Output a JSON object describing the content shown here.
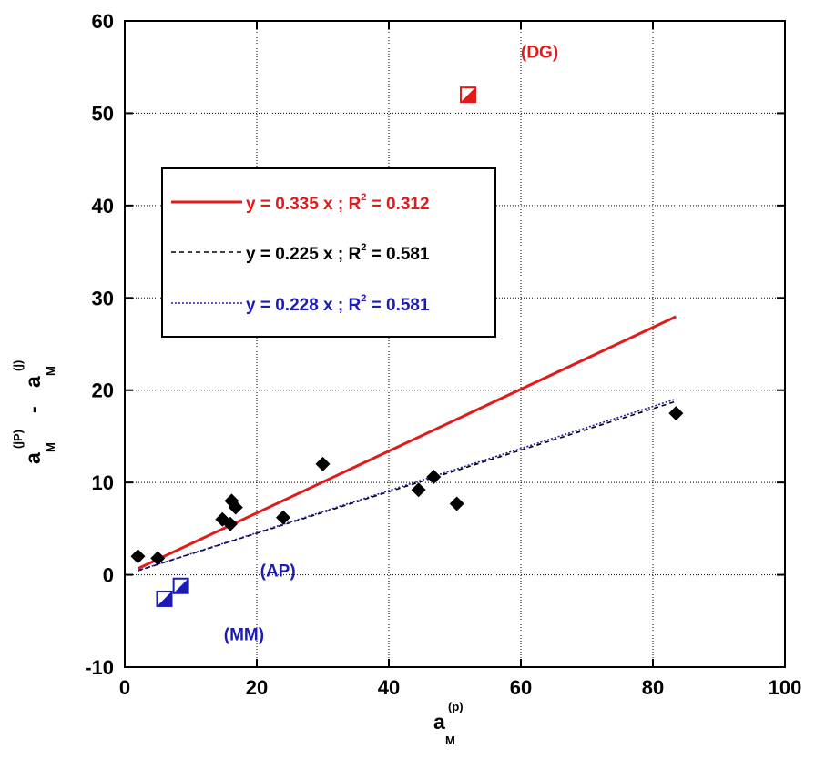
{
  "chart_data": {
    "type": "scatter",
    "xlabel": {
      "base": "a",
      "sub": "M",
      "sup": "(p)"
    },
    "ylabel": {
      "base1": "a",
      "sub1": "M",
      "sup1": "(jP)",
      "mid": " - ",
      "base2": "a",
      "sub2": "M",
      "sup2": "(j)"
    },
    "xlim": [
      0,
      100
    ],
    "ylim": [
      -10,
      60
    ],
    "xticks": [
      0,
      20,
      40,
      60,
      80,
      100
    ],
    "yticks": [
      -10,
      0,
      10,
      20,
      30,
      40,
      50,
      60
    ],
    "grid": true,
    "legend_position": "upper-left",
    "colors": {
      "red": "#e01b1b",
      "black": "#000000",
      "blue": "#1c1cb4"
    },
    "points": [
      {
        "x": 2.0,
        "y": 2.0
      },
      {
        "x": 5.0,
        "y": 1.8
      },
      {
        "x": 14.8,
        "y": 6.0
      },
      {
        "x": 16.0,
        "y": 5.5
      },
      {
        "x": 16.2,
        "y": 8.0
      },
      {
        "x": 16.8,
        "y": 7.3
      },
      {
        "x": 24.0,
        "y": 6.2
      },
      {
        "x": 30.0,
        "y": 12.0
      },
      {
        "x": 44.5,
        "y": 9.2
      },
      {
        "x": 46.8,
        "y": 10.6
      },
      {
        "x": 50.3,
        "y": 7.7
      },
      {
        "x": 83.5,
        "y": 17.5
      }
    ],
    "special_points": [
      {
        "label": "(DG)",
        "x": 52.0,
        "y": 52.0,
        "color": "#e01b1b",
        "label_dx": 8,
        "label_dy": 4
      },
      {
        "label": "(AP)",
        "x": 8.5,
        "y": -1.2,
        "color": "#1c1cb4",
        "label_dx": 12,
        "label_dy": 1
      },
      {
        "label": "(MM)",
        "x": 6.0,
        "y": -2.6,
        "color": "#1c1cb4",
        "label_dx": 9,
        "label_dy": -4.5
      }
    ],
    "fits": [
      {
        "slope": 0.335,
        "r2": "0.312",
        "eq": "y = 0.335 x ; R",
        "r2_text": " = 0.312",
        "x_range": [
          2,
          83.5
        ],
        "color": "#e01b1b",
        "style": "solid"
      },
      {
        "slope": 0.225,
        "r2": "0.581",
        "eq": "y = 0.225 x ; R",
        "r2_text": " = 0.581",
        "x_range": [
          2,
          83.5
        ],
        "color": "#000000",
        "style": "dashed"
      },
      {
        "slope": 0.228,
        "r2": "0.581",
        "eq": "y = 0.228 x ; R",
        "r2_text": " = 0.581",
        "x_range": [
          2,
          83.5
        ],
        "color": "#1c1cb4",
        "style": "dotted"
      }
    ],
    "r2_sup": "2"
  }
}
